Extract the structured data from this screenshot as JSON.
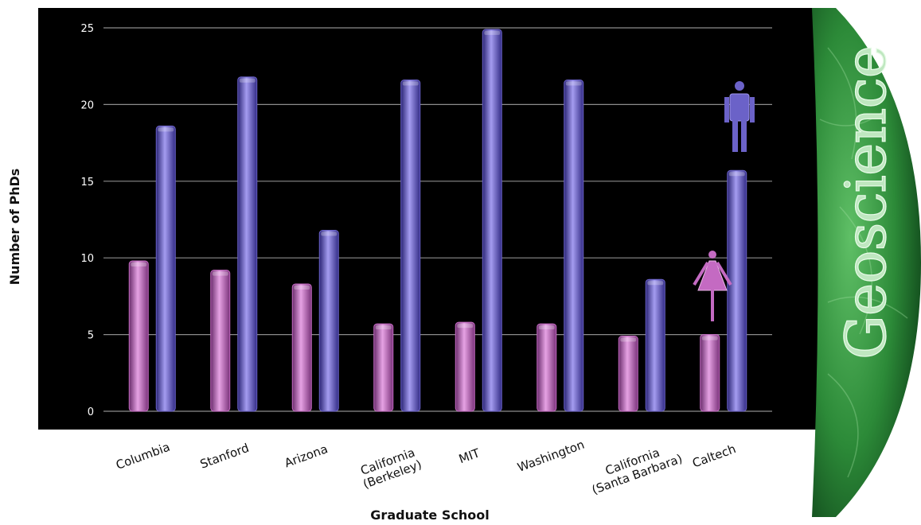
{
  "chart_data": {
    "type": "bar",
    "title": "",
    "xlabel": "Graduate School",
    "ylabel": "Number of PhDs",
    "ylim": [
      0,
      25
    ],
    "yticks": [
      0,
      5,
      10,
      15,
      20,
      25
    ],
    "grid": true,
    "categories": [
      [
        "Columbia"
      ],
      [
        "Stanford"
      ],
      [
        "Arizona"
      ],
      [
        "California",
        "(Berkeley)"
      ],
      [
        "MIT"
      ],
      [
        "Washington"
      ],
      [
        "California",
        "(Santa Barbara)"
      ],
      [
        "Caltech"
      ]
    ],
    "series": [
      {
        "values": [
          9.8,
          9.2,
          8.3,
          5.7,
          5.8,
          5.7,
          4.9,
          5.0
        ]
      },
      {
        "values": [
          18.6,
          21.8,
          11.8,
          21.6,
          24.9,
          21.6,
          8.6,
          15.7
        ]
      }
    ],
    "colors": {
      "female": "#c46ac2",
      "male": "#6b62c8",
      "plot_bg": "#000000",
      "grid": "#8c8c8c"
    },
    "annotations": {
      "legend_icons": [
        "female-figure-icon",
        "male-figure-icon"
      ],
      "banner_text": "Geoscience"
    }
  }
}
